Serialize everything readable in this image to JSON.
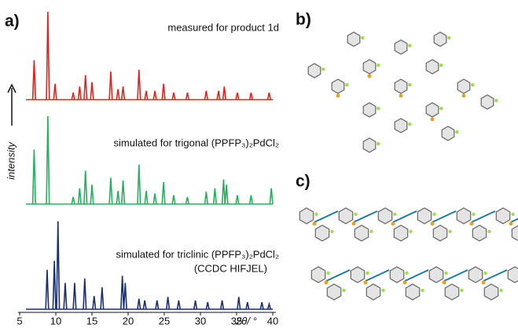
{
  "panel_labels": [
    "a)",
    "b)",
    "c)"
  ],
  "chart_data": {
    "type": "stick",
    "x_label": "2θ/ °",
    "y_label": "intensity",
    "xlim": [
      5,
      40
    ],
    "xticks": [
      5,
      10,
      15,
      20,
      25,
      30,
      35,
      40
    ],
    "ylim": [
      0,
      100
    ],
    "series": [
      {
        "name": "measured for product 1d",
        "color": "#e8201c",
        "x": [
          7.0,
          8.9,
          9.9,
          12.4,
          13.3,
          14.1,
          15.0,
          17.6,
          18.6,
          19.3,
          21.5,
          22.5,
          23.7,
          24.9,
          26.3,
          28.2,
          30.8,
          32.5,
          33.3,
          35.1,
          37.0,
          39.5
        ],
        "values": [
          45,
          100,
          18,
          8,
          15,
          28,
          20,
          32,
          12,
          15,
          34,
          10,
          10,
          18,
          8,
          8,
          10,
          10,
          15,
          8,
          8,
          8
        ]
      },
      {
        "name": "simulated for trigonal (PPFP₃)₂PdCl₂",
        "color": "#22b35a",
        "x": [
          7.0,
          8.9,
          12.4,
          13.3,
          14.1,
          15.0,
          17.6,
          18.6,
          19.3,
          21.5,
          22.5,
          23.7,
          24.9,
          26.3,
          28.2,
          30.8,
          32.0,
          33.2,
          33.6,
          35.1,
          37.0,
          39.8
        ],
        "values": [
          62,
          100,
          8,
          18,
          38,
          22,
          30,
          15,
          27,
          45,
          15,
          12,
          25,
          10,
          8,
          14,
          18,
          28,
          22,
          10,
          10,
          18
        ]
      },
      {
        "name": "simulated for triclinic (PPFP₃)₂PdCl₂",
        "note": "(CCDC HIFJEL)",
        "color": "#1a2f6e",
        "x": [
          8.8,
          9.8,
          10.3,
          11.3,
          12.6,
          14.0,
          15.3,
          16.4,
          19.2,
          19.6,
          21.5,
          22.3,
          24.0,
          25.5,
          27.0,
          29.3,
          31.0,
          33.0,
          35.3,
          36.5,
          38.5,
          39.5
        ],
        "values": [
          45,
          55,
          100,
          30,
          30,
          35,
          15,
          25,
          38,
          30,
          12,
          10,
          10,
          14,
          10,
          10,
          8,
          10,
          14,
          8,
          8,
          6
        ]
      }
    ]
  }
}
